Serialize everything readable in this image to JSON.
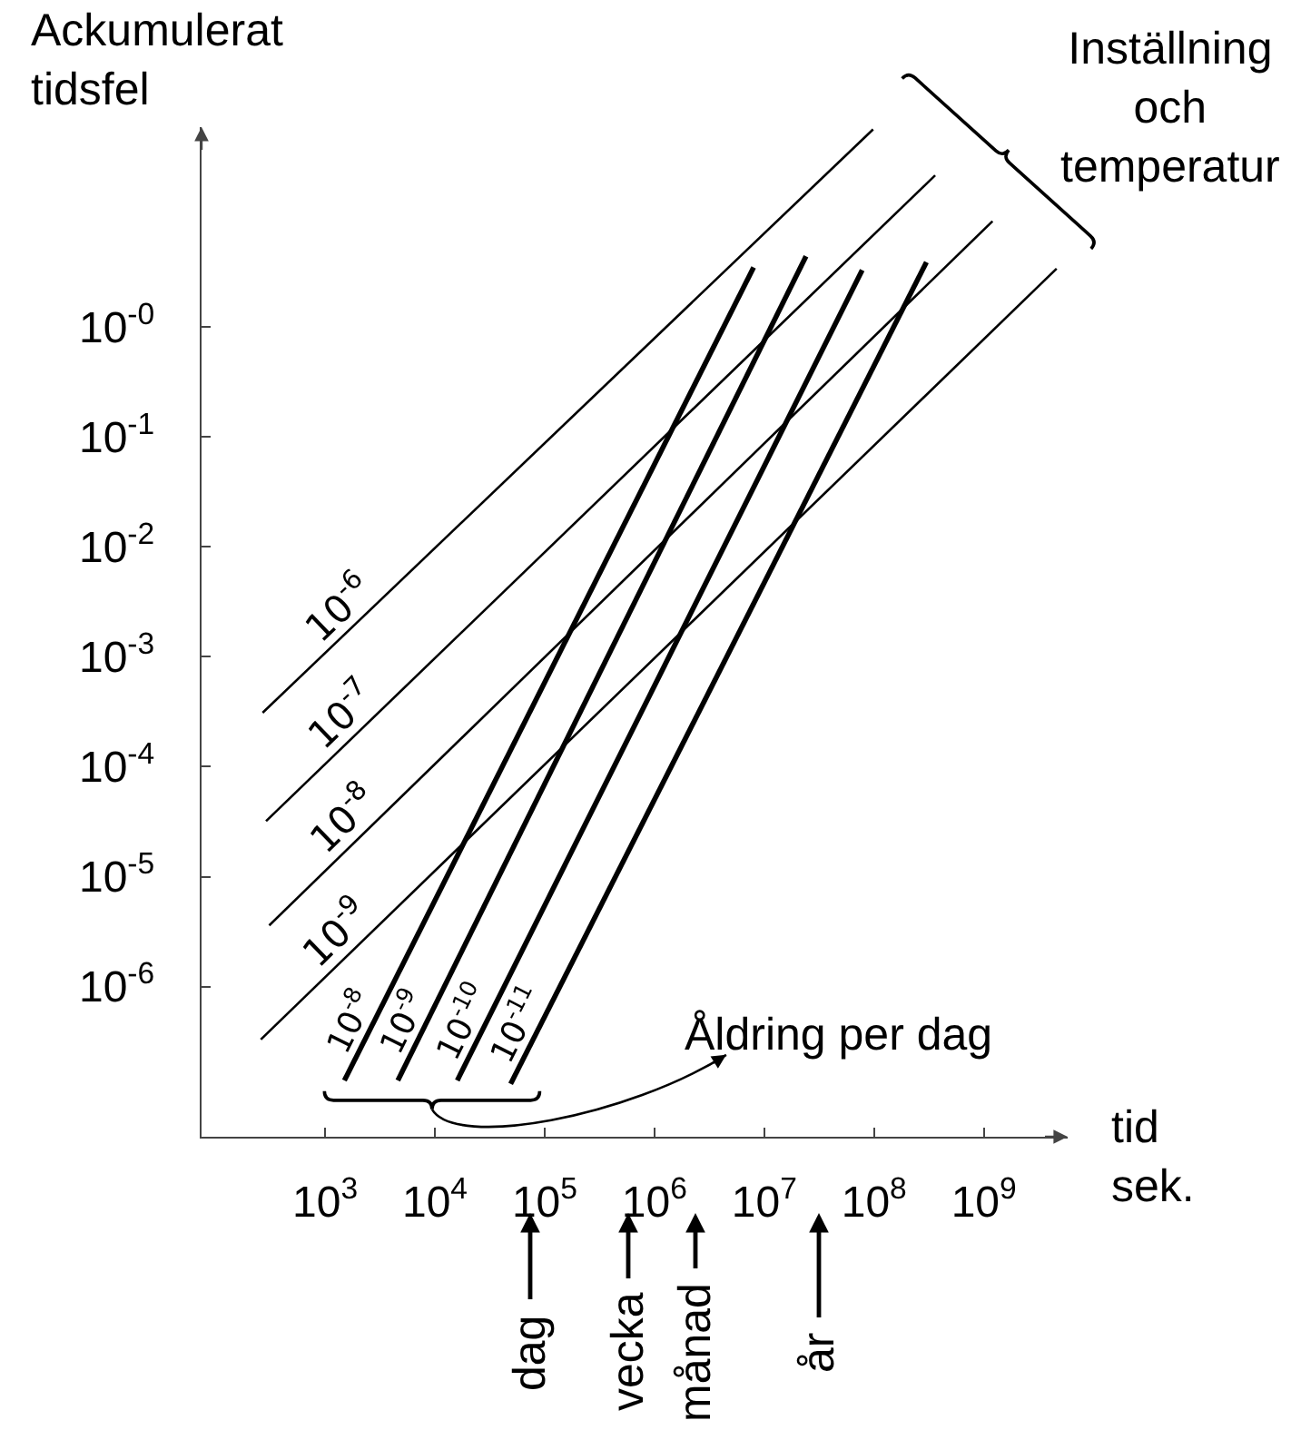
{
  "chart_data": {
    "type": "line",
    "xlabel": "tid\nsek.",
    "ylabel": "Ackumulerat\ntidsfel",
    "log": "xy",
    "line_style": "solid",
    "xlim": [
      75,
      5800000000.0
    ],
    "ylim": [
      4.3e-08,
      66
    ],
    "xticks": [
      {
        "value": 1000,
        "label": "10$^{3}$"
      },
      {
        "value": 10000,
        "label": "10$^{4}$"
      },
      {
        "value": 100000,
        "label": "10$^{5}$"
      },
      {
        "value": 1000000,
        "label": "10$^{6}$"
      },
      {
        "value": 10000000,
        "label": "10$^{7}$"
      },
      {
        "value": 100000000,
        "label": "10$^{8}$"
      },
      {
        "value": 1000000000,
        "label": "10$^{9}$"
      }
    ],
    "yticks": [
      {
        "value": 1,
        "label": "10$^{-0}$"
      },
      {
        "value": 0.1,
        "label": "10$^{-1}$"
      },
      {
        "value": 0.01,
        "label": "10$^{-2}$"
      },
      {
        "value": 0.001,
        "label": "10$^{-3}$"
      },
      {
        "value": 0.0001,
        "label": "10$^{-4}$"
      },
      {
        "value": 1e-05,
        "label": "10$^{-5}$"
      },
      {
        "value": 1e-06,
        "label": "10$^{-6}$"
      }
    ],
    "series": [
      {
        "name": "10$^{-6}$",
        "color": "#000000",
        "x": [
          270,
          98000000.0
        ],
        "values": [
          0.00031,
          63
        ]
      },
      {
        "name": "10$^{-7}$",
        "color": "#000000",
        "x": [
          290,
          360000000.0
        ],
        "values": [
          3.2e-05,
          24
        ]
      },
      {
        "name": "10$^{-8}$",
        "color": "#000000",
        "x": [
          310,
          1200000000.0
        ],
        "values": [
          3.6e-06,
          9.2
        ]
      },
      {
        "name": "10$^{-9}$",
        "color": "#000000",
        "x": [
          260,
          4600000000.0
        ],
        "values": [
          3.3e-07,
          3.4
        ]
      },
      {
        "name": "10$^{-8}$",
        "color": "#000000",
        "x": [
          1500,
          8000000.0
        ],
        "values": [
          1.4e-07,
          3.5
        ]
      },
      {
        "name": "10$^{-9}$",
        "color": "#000000",
        "x": [
          4600,
          24000000.0
        ],
        "values": [
          1.4e-07,
          4.4
        ]
      },
      {
        "name": "10$^{-10}$",
        "color": "#000000",
        "x": [
          16000,
          78000000.0
        ],
        "values": [
          1.4e-07,
          3.3
        ]
      },
      {
        "name": "10$^{-11}$",
        "color": "#000000",
        "x": [
          49000,
          300000000.0
        ],
        "values": [
          1.3e-07,
          3.9
        ]
      }
    ],
    "annotations": [
      "Inställning\noch\ntemperatur",
      "Åldring per dag",
      "dag",
      "vecka",
      "månad",
      "år"
    ]
  }
}
